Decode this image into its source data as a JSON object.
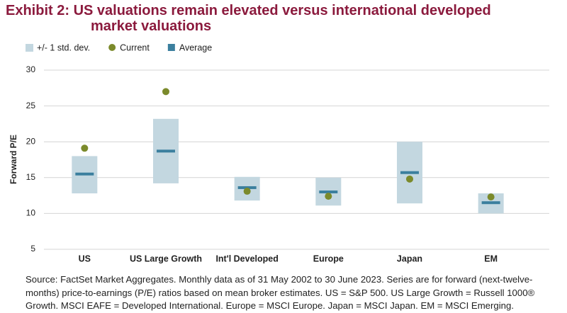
{
  "chart_data": {
    "type": "range",
    "title": [
      "Exhibit 2: US valuations remain elevated versus international developed",
      "market valuations"
    ],
    "y_label": "Forward P/E",
    "categories": [
      "US",
      "US Large Growth",
      "Int'l Developed",
      "Europe",
      "Japan",
      "EM"
    ],
    "series": [
      {
        "name": "+/- 1 std. dev.",
        "color": "#c3d7e0",
        "low": [
          12.8,
          14.2,
          11.8,
          11.1,
          11.4,
          10.0
        ],
        "high": [
          18.0,
          23.2,
          15.1,
          15.0,
          20.0,
          12.8
        ]
      },
      {
        "name": "Current",
        "color": "#7b8a2b",
        "values": [
          19.1,
          27.0,
          13.1,
          12.4,
          14.8,
          12.3
        ]
      },
      {
        "name": "Average",
        "color": "#3b7f9e",
        "values": [
          15.5,
          18.7,
          13.6,
          13.0,
          15.7,
          11.5
        ]
      }
    ],
    "ylim": [
      5,
      30
    ],
    "yticks": [
      5,
      10,
      15,
      20,
      25,
      30
    ],
    "grid": true,
    "source": "Source: FactSet Market Aggregates. Monthly data as of 31 May 2002 to 30 June 2023. Series are for forward (next-twelve-months) price-to-earnings (P/E) ratios based on mean broker estimates. US = S&P 500. US Large Growth = Russell 1000® Growth. MSCI EAFE = Developed International. Europe = MSCI Europe. Japan = MSCI Japan. EM = MSCI Emerging."
  }
}
